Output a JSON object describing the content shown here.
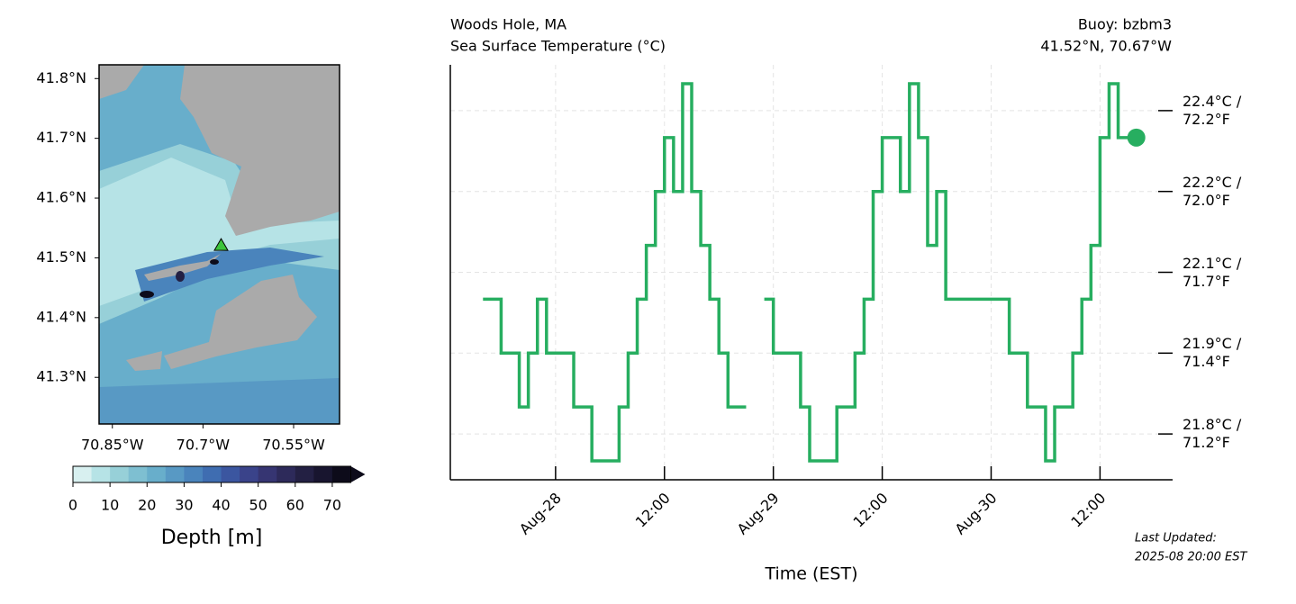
{
  "chart_data": [
    {
      "type": "map",
      "xlim": [
        -70.872,
        -70.474
      ],
      "ylim": [
        41.222,
        41.823
      ],
      "xticks": [
        {
          "value": -70.85,
          "label": "70.85°W"
        },
        {
          "value": -70.7,
          "label": "70.7°W"
        },
        {
          "value": -70.55,
          "label": "70.55°W"
        }
      ],
      "yticks": [
        {
          "value": 41.3,
          "label": "41.3°N"
        },
        {
          "value": 41.4,
          "label": "41.4°N"
        },
        {
          "value": 41.5,
          "label": "41.5°N"
        },
        {
          "value": 41.6,
          "label": "41.6°N"
        },
        {
          "value": 41.7,
          "label": "41.7°N"
        },
        {
          "value": 41.8,
          "label": "41.8°N"
        }
      ],
      "points": {
        "x": [
          -70.67
        ],
        "y": [
          41.52
        ],
        "color": "#3cc43c"
      },
      "colorbar": {
        "label": "Depth [m]",
        "lim": [
          0,
          75
        ],
        "ticks": [
          0,
          10,
          20,
          30,
          40,
          50,
          60,
          70
        ],
        "colors": [
          "#d8f0f0",
          "#b6e3e6",
          "#97d0d8",
          "#7ebfd1",
          "#68aecb",
          "#5899c4",
          "#4a84bc",
          "#3f6db1",
          "#3b56a0",
          "#3a438a",
          "#363572",
          "#2d2a5a",
          "#232043",
          "#18152f",
          "#0d0b1a"
        ]
      }
    },
    {
      "type": "line",
      "title": "Woods Hole, MA",
      "subtitle": "Sea Surface Temperature (°C)",
      "title_right": "Buoy: bzbm3",
      "subtitle_right": "41.52°N, 70.67°W",
      "xlabel": "Time (EST)",
      "annotation": [
        "Last Updated:",
        "2025-08 20:00 EST"
      ],
      "color": "#27ae60",
      "drawstyle": "steps-post",
      "marker_last": true,
      "grid": true,
      "xlim": [
        "Aug-27 12:24",
        "Aug-30 20:00"
      ],
      "xticks": [
        {
          "value": "Aug-28 00:00",
          "label": "Aug-28"
        },
        {
          "value": "Aug-28 12:00",
          "label": "12:00"
        },
        {
          "value": "Aug-29 00:00",
          "label": "Aug-29"
        },
        {
          "value": "Aug-29 12:00",
          "label": "12:00"
        },
        {
          "value": "Aug-30 00:00",
          "label": "Aug-30"
        },
        {
          "value": "Aug-30 12:00",
          "label": "12:00"
        }
      ],
      "ylim": [
        21.715,
        22.485
      ],
      "yticks": [
        {
          "value": 21.8,
          "label": "21.8°C /\n71.2°F"
        },
        {
          "value": 21.95,
          "label": "21.9°C /\n71.4°F"
        },
        {
          "value": 22.1,
          "label": "22.1°C /\n71.7°F"
        },
        {
          "value": 22.25,
          "label": "22.2°C /\n72.0°F"
        },
        {
          "value": 22.4,
          "label": "22.4°C /\n72.2°F"
        }
      ],
      "x": [
        "Aug-27 16:00",
        "Aug-27 17:00",
        "Aug-27 18:00",
        "Aug-27 19:00",
        "Aug-27 20:00",
        "Aug-27 21:00",
        "Aug-27 22:00",
        "Aug-27 23:00",
        "Aug-28 00:00",
        "Aug-28 01:00",
        "Aug-28 02:00",
        "Aug-28 03:00",
        "Aug-28 04:00",
        "Aug-28 05:00",
        "Aug-28 06:00",
        "Aug-28 07:00",
        "Aug-28 08:00",
        "Aug-28 09:00",
        "Aug-28 10:00",
        "Aug-28 11:00",
        "Aug-28 12:00",
        "Aug-28 13:00",
        "Aug-28 14:00",
        "Aug-28 15:00",
        "Aug-28 16:00",
        "Aug-28 17:00",
        "Aug-28 18:00",
        "Aug-28 19:00",
        "Aug-28 20:00",
        "Aug-28 21:00",
        "Aug-28 22:00",
        "Aug-28 23:00",
        "Aug-29 00:00",
        "Aug-29 01:00",
        "Aug-29 02:00",
        "Aug-29 03:00",
        "Aug-29 04:00",
        "Aug-29 05:00",
        "Aug-29 06:00",
        "Aug-29 07:00",
        "Aug-29 08:00",
        "Aug-29 09:00",
        "Aug-29 10:00",
        "Aug-29 11:00",
        "Aug-29 12:00",
        "Aug-29 13:00",
        "Aug-29 14:00",
        "Aug-29 15:00",
        "Aug-29 16:00",
        "Aug-29 17:00",
        "Aug-29 18:00",
        "Aug-29 19:00",
        "Aug-29 20:00",
        "Aug-29 21:00",
        "Aug-29 22:00",
        "Aug-29 23:00",
        "Aug-30 00:00",
        "Aug-30 01:00",
        "Aug-30 02:00",
        "Aug-30 03:00",
        "Aug-30 04:00",
        "Aug-30 05:00",
        "Aug-30 06:00",
        "Aug-30 07:00",
        "Aug-30 08:00",
        "Aug-30 09:00",
        "Aug-30 10:00",
        "Aug-30 11:00",
        "Aug-30 12:00",
        "Aug-30 13:00",
        "Aug-30 14:00",
        "Aug-30 15:00",
        "Aug-30 16:00"
      ],
      "values": [
        22.05,
        22.05,
        21.95,
        21.95,
        21.85,
        21.95,
        22.05,
        21.95,
        21.95,
        21.95,
        21.85,
        21.85,
        21.75,
        21.75,
        21.75,
        21.85,
        21.95,
        22.05,
        22.15,
        22.25,
        22.35,
        22.25,
        22.45,
        22.25,
        22.15,
        22.05,
        21.95,
        21.85,
        21.85,
        21.85,
        null,
        22.05,
        21.95,
        21.95,
        21.95,
        21.85,
        21.75,
        21.75,
        21.75,
        21.85,
        21.85,
        21.95,
        22.05,
        22.25,
        22.35,
        22.35,
        22.25,
        22.45,
        22.35,
        22.15,
        22.25,
        22.05,
        22.05,
        22.05,
        22.05,
        22.05,
        22.05,
        22.05,
        21.95,
        21.95,
        21.85,
        21.85,
        21.75,
        21.85,
        21.85,
        21.95,
        22.05,
        22.15,
        22.35,
        22.45,
        22.35,
        22.35,
        22.35
      ]
    }
  ]
}
